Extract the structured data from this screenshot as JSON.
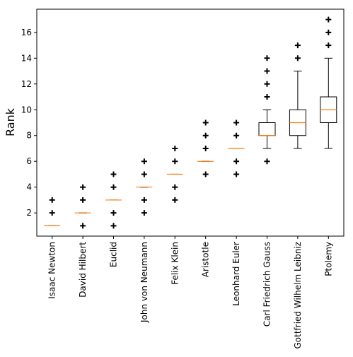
{
  "chart_data": {
    "type": "boxplot",
    "title": "",
    "xlabel": "",
    "ylabel": "Rank",
    "ylim": [
      0.2,
      17.8
    ],
    "yticks": [
      2,
      4,
      6,
      8,
      10,
      12,
      14,
      16
    ],
    "grid": false,
    "legend": "none",
    "colors": {
      "box": "#000000",
      "median": "#ff7f0e",
      "outlier": "#000000"
    },
    "categories": [
      "Isaac Newton",
      "David Hilbert",
      "Euclid",
      "John von Neumann",
      "Felix Klein",
      "Aristotle",
      "Leonhard Euler",
      "Carl Friedrich Gauss",
      "Gottfried Wilhelm Leibniz",
      "Ptolemy"
    ],
    "boxes": [
      {
        "whislo": 1,
        "q1": 1,
        "med": 1,
        "q3": 1,
        "whishi": 1,
        "fliers": [
          2,
          3
        ]
      },
      {
        "whislo": 2,
        "q1": 2,
        "med": 2,
        "q3": 2,
        "whishi": 2,
        "fliers": [
          1,
          3,
          4
        ]
      },
      {
        "whislo": 3,
        "q1": 3,
        "med": 3,
        "q3": 3,
        "whishi": 3,
        "fliers": [
          1,
          2,
          4,
          5
        ]
      },
      {
        "whislo": 4,
        "q1": 4,
        "med": 4,
        "q3": 4,
        "whishi": 4,
        "fliers": [
          2,
          3,
          5,
          6
        ]
      },
      {
        "whislo": 5,
        "q1": 5,
        "med": 5,
        "q3": 5,
        "whishi": 5,
        "fliers": [
          3,
          4,
          6,
          7
        ]
      },
      {
        "whislo": 6,
        "q1": 6,
        "med": 6,
        "q3": 6,
        "whishi": 6,
        "fliers": [
          5,
          7,
          8,
          9
        ]
      },
      {
        "whislo": 7,
        "q1": 7,
        "med": 7,
        "q3": 7,
        "whishi": 7,
        "fliers": [
          5,
          6,
          8,
          9
        ]
      },
      {
        "whislo": 7,
        "q1": 8,
        "med": 8,
        "q3": 9,
        "whishi": 10,
        "fliers": [
          6,
          11,
          12,
          13,
          14
        ]
      },
      {
        "whislo": 7,
        "q1": 8,
        "med": 9,
        "q3": 10,
        "whishi": 13,
        "fliers": [
          14,
          15
        ]
      },
      {
        "whislo": 7,
        "q1": 9,
        "med": 10,
        "q3": 11,
        "whishi": 14,
        "fliers": [
          15,
          16,
          17
        ]
      }
    ]
  }
}
